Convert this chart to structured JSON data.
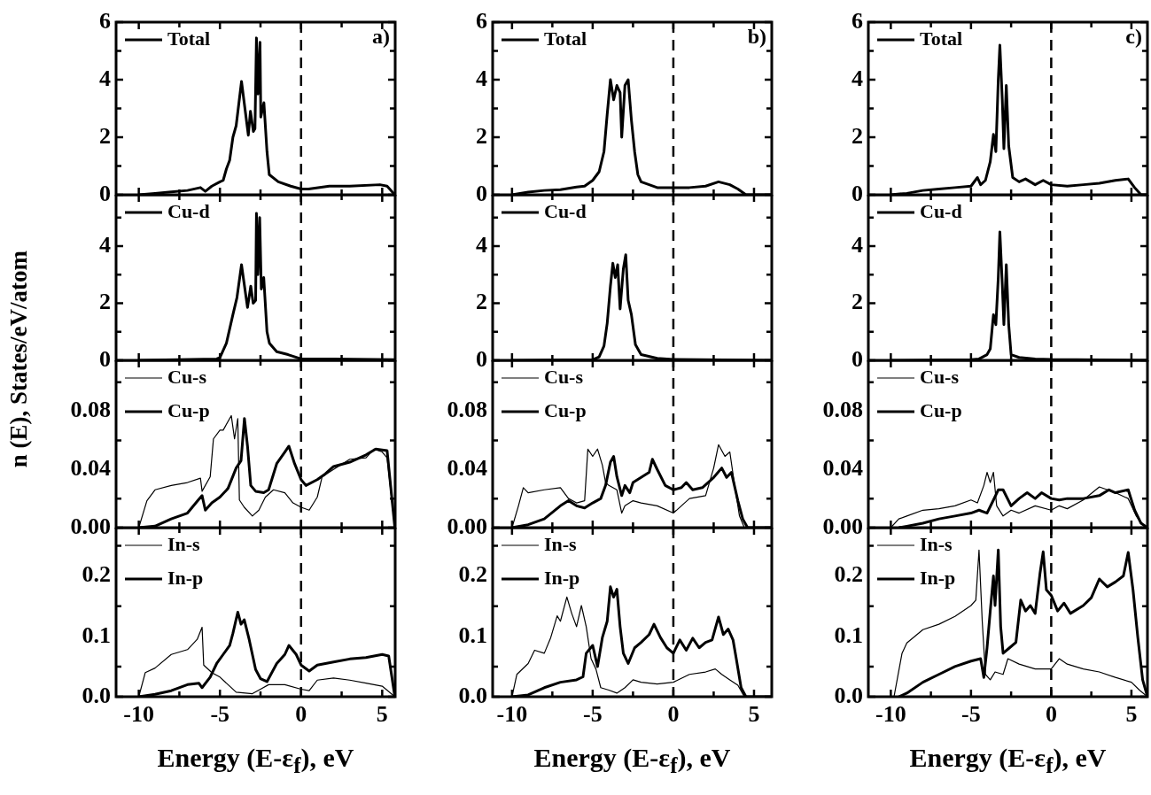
{
  "chart_data": [
    {
      "type": "line",
      "annotations": [
        "a)"
      ],
      "legend": "top left",
      "tick_labels": "y",
      "xlim": [
        -11.4,
        5.8
      ],
      "xticks": [
        -10,
        {
          "value": -7.5,
          "label": null
        },
        -5,
        {
          "value": -2.5,
          "label": null
        },
        0,
        {
          "value": 2.5,
          "label": null
        },
        5
      ],
      "ylim": [
        0,
        6
      ],
      "yticks": [
        0,
        {
          "value": 1,
          "label": null
        },
        2,
        {
          "value": 3,
          "label": null
        },
        4,
        {
          "value": 5,
          "label": null
        },
        6
      ],
      "ref_lines": [
        {
          "axis": "x",
          "value": 0,
          "line_style": "dashed"
        }
      ],
      "series": [
        {
          "name": "Total",
          "color": "#000000",
          "x": [
            -10,
            -9,
            -8,
            -7,
            -6.2,
            -5.9,
            -5.5,
            -5,
            -4.8,
            -4.6,
            -4.4,
            -4.2,
            -4,
            -3.67,
            -3.25,
            -3.12,
            -2.94,
            -2.84,
            -2.75,
            -2.66,
            -2.53,
            -2.48,
            -2.29,
            -2.1,
            -1.96,
            -1.4,
            -0.64,
            0,
            0.46,
            1.74,
            3,
            4.86,
            5.3,
            5.78
          ],
          "values": [
            0,
            0.05,
            0.1,
            0.15,
            0.25,
            0.12,
            0.3,
            0.45,
            0.5,
            0.9,
            1.2,
            2,
            2.4,
            3.94,
            2.07,
            2.9,
            2.2,
            2.3,
            5.45,
            3.5,
            5.3,
            2.7,
            3.2,
            1.5,
            0.7,
            0.45,
            0.3,
            0.2,
            0.2,
            0.3,
            0.3,
            0.35,
            0.3,
            0
          ]
        }
      ]
    },
    {
      "type": "line",
      "ylabel": "n (E), States/eV/atom",
      "legend": "top left",
      "tick_labels": "y",
      "xlim": [
        -11.4,
        5.8
      ],
      "xticks": [
        -10,
        {
          "value": -7.5,
          "label": null
        },
        -5,
        {
          "value": -2.5,
          "label": null
        },
        0,
        {
          "value": 2.5,
          "label": null
        },
        5
      ],
      "ylim": [
        0,
        5.8
      ],
      "yticks": [
        0,
        {
          "value": 1,
          "label": null
        },
        2,
        {
          "value": 3,
          "label": null
        },
        4,
        {
          "value": 5,
          "label": null
        }
      ],
      "ref_lines": [
        {
          "axis": "x",
          "value": 0,
          "line_style": "dashed"
        }
      ],
      "series": [
        {
          "name": "Cu-d",
          "color": "#000000",
          "x": [
            -10,
            -5.2,
            -5,
            -4.6,
            -4.2,
            -3.95,
            -3.67,
            -3.3,
            -3.1,
            -2.95,
            -2.8,
            -2.75,
            -2.66,
            -2.55,
            -2.45,
            -2.3,
            -2.1,
            -1.95,
            -1.5,
            -0.8,
            0,
            2,
            5.78
          ],
          "values": [
            0,
            0.05,
            0.1,
            0.6,
            1.6,
            2.2,
            3.35,
            1.85,
            2.6,
            2,
            2.1,
            5.15,
            3,
            5,
            2.5,
            2.9,
            1,
            0.6,
            0.3,
            0.2,
            0.05,
            0.05,
            0.02
          ]
        }
      ]
    },
    {
      "type": "line",
      "legend": "top left",
      "tick_labels": "y",
      "xlim": [
        -11.4,
        5.8
      ],
      "xticks": [
        -10,
        {
          "value": -7.5,
          "label": null
        },
        -5,
        {
          "value": -2.5,
          "label": null
        },
        0,
        {
          "value": 2.5,
          "label": null
        },
        5
      ],
      "ylim": [
        0,
        0.115
      ],
      "yticks": [
        {
          "value": 0,
          "label": "0.00"
        },
        {
          "value": 0.02,
          "label": null
        },
        0.04,
        {
          "value": 0.06,
          "label": null
        },
        0.08,
        {
          "value": 0.1,
          "label": null
        }
      ],
      "ref_lines": [
        {
          "axis": "x",
          "value": 0,
          "line_style": "dashed"
        }
      ],
      "series": [
        {
          "name": "Cu-s",
          "color": "#000000",
          "x": [
            -10,
            -9.5,
            -9,
            -8,
            -7,
            -6.2,
            -6.1,
            -5.6,
            -5.4,
            -5,
            -4.8,
            -4.3,
            -4.1,
            -3.9,
            -3.8,
            -3.5,
            -3,
            -2.6,
            -2.2,
            -1.7,
            -1,
            -0.5,
            0,
            0.5,
            1,
            1.3,
            2,
            3,
            4,
            4.5,
            5,
            5.3,
            5.78
          ],
          "values": [
            0,
            0.0185,
            0.026,
            0.029,
            0.031,
            0.034,
            0.025,
            0.035,
            0.061,
            0.067,
            0.067,
            0.077,
            0.061,
            0.075,
            0.019,
            0.014,
            0.008,
            0.012,
            0.021,
            0.026,
            0.024,
            0.017,
            0.014,
            0.012,
            0.021,
            0.035,
            0.04,
            0.047,
            0.048,
            0.054,
            0.052,
            0.048,
            0
          ]
        },
        {
          "name": "Cu-p",
          "color": "#000000",
          "x": [
            -10,
            -9,
            -8,
            -7,
            -6.3,
            -6.1,
            -5.9,
            -5.5,
            -5,
            -4.5,
            -4,
            -3.7,
            -3.49,
            -3.3,
            -3.1,
            -2.8,
            -2.3,
            -2,
            -1.5,
            -1,
            -0.75,
            -0.4,
            0,
            0.3,
            1,
            1.5,
            2,
            3,
            4,
            4.6,
            5.3,
            5.78
          ],
          "values": [
            0,
            0.001,
            0.006,
            0.01,
            0.0195,
            0.022,
            0.012,
            0.017,
            0.021,
            0.027,
            0.041,
            0.046,
            0.075,
            0.056,
            0.029,
            0.025,
            0.024,
            0.026,
            0.044,
            0.052,
            0.056,
            0.044,
            0.033,
            0.029,
            0.033,
            0.037,
            0.042,
            0.045,
            0.05,
            0.054,
            0.053,
            0
          ]
        }
      ]
    },
    {
      "type": "line",
      "xlabel": "Energy (E-ε$_{f}$), eV",
      "legend": "top left",
      "xlim": [
        -11.4,
        5.8
      ],
      "xticks": [
        -10,
        {
          "value": -7.5,
          "label": null
        },
        -5,
        {
          "value": -2.5,
          "label": null
        },
        0,
        {
          "value": 2.5,
          "label": null
        },
        5
      ],
      "ylim": [
        0,
        0.28
      ],
      "yticks": [
        {
          "value": 0,
          "label": "0.0"
        },
        {
          "value": 0.05,
          "label": null
        },
        0.1,
        {
          "value": 0.15,
          "label": null
        },
        0.2,
        {
          "value": 0.25,
          "label": null
        }
      ],
      "ref_lines": [
        {
          "axis": "x",
          "value": 0,
          "line_style": "dashed"
        }
      ],
      "series": [
        {
          "name": "In-s",
          "color": "#000000",
          "x": [
            -10,
            -9.6,
            -9,
            -8,
            -7,
            -6.4,
            -6.1,
            -6,
            -5.5,
            -5,
            -4.5,
            -4,
            -3,
            -2.5,
            -2,
            -1,
            0,
            0.5,
            1,
            2,
            3,
            4,
            5,
            5.78
          ],
          "values": [
            0,
            0.04,
            0.0475,
            0.07,
            0.078,
            0.095,
            0.115,
            0.0525,
            0.04,
            0.0325,
            0.02,
            0.0075,
            0.005,
            0.0125,
            0.02,
            0.02,
            0.0125,
            0.01,
            0.0275,
            0.031,
            0.0275,
            0.0225,
            0.0175,
            0
          ]
        },
        {
          "name": "In-p",
          "color": "#000000",
          "x": [
            -10,
            -9,
            -8,
            -7,
            -6.3,
            -6.1,
            -5.6,
            -5.2,
            -4.8,
            -4.4,
            -4.2,
            -3.9,
            -3.7,
            -3.5,
            -3.2,
            -2.8,
            -2.5,
            -2.1,
            -1.5,
            -1,
            -0.75,
            -0.3,
            0,
            0.5,
            1,
            2,
            3,
            4,
            5,
            5.4,
            5.78
          ],
          "values": [
            0,
            0.004,
            0.01,
            0.02,
            0.0225,
            0.015,
            0.0325,
            0.055,
            0.07,
            0.085,
            0.105,
            0.14,
            0.12,
            0.1275,
            0.095,
            0.045,
            0.03,
            0.025,
            0.055,
            0.07,
            0.085,
            0.07,
            0.0525,
            0.0425,
            0.0525,
            0.0575,
            0.0625,
            0.065,
            0.07,
            0.0675,
            0
          ]
        }
      ]
    },
    {
      "type": "line",
      "annotations": [
        "b)"
      ],
      "legend": "top left",
      "tick_labels": "y",
      "xlim": [
        -11.2,
        6.1
      ],
      "xticks": [
        -10,
        {
          "value": -7.5,
          "label": null
        },
        -5,
        {
          "value": -2.5,
          "label": null
        },
        0,
        {
          "value": 2.5,
          "label": null
        },
        5
      ],
      "ylim": [
        0,
        6
      ],
      "yticks": [
        0,
        {
          "value": 1,
          "label": null
        },
        2,
        {
          "value": 3,
          "label": null
        },
        4,
        {
          "value": 5,
          "label": null
        },
        6
      ],
      "ref_lines": [
        {
          "axis": "x",
          "value": 0,
          "line_style": "dashed"
        }
      ],
      "series": [
        {
          "name": "Total",
          "color": "#000000",
          "x": [
            -10,
            -9,
            -8,
            -7,
            -6,
            -5.5,
            -5,
            -4.6,
            -4.3,
            -4.1,
            -3.9,
            -3.7,
            -3.5,
            -3.3,
            -3.2,
            -3,
            -2.8,
            -2.6,
            -2.4,
            -2.2,
            -2,
            -1,
            0,
            1,
            2,
            2.8,
            3.5,
            4,
            4.5,
            6.1
          ],
          "values": [
            0,
            0.09,
            0.15,
            0.18,
            0.27,
            0.3,
            0.5,
            0.8,
            1.5,
            2.8,
            4,
            3.3,
            3.8,
            3.55,
            2,
            3.8,
            4,
            2.6,
            1.5,
            0.7,
            0.45,
            0.25,
            0.25,
            0.25,
            0.3,
            0.45,
            0.35,
            0.2,
            0,
            0
          ]
        }
      ]
    },
    {
      "type": "line",
      "legend": "top left",
      "tick_labels": "y",
      "xlim": [
        -11.2,
        6.1
      ],
      "xticks": [
        -10,
        {
          "value": -7.5,
          "label": null
        },
        -5,
        {
          "value": -2.5,
          "label": null
        },
        0,
        {
          "value": 2.5,
          "label": null
        },
        5
      ],
      "ylim": [
        0,
        5.8
      ],
      "yticks": [
        0,
        {
          "value": 1,
          "label": null
        },
        2,
        {
          "value": 3,
          "label": null
        },
        4,
        {
          "value": 5,
          "label": null
        }
      ],
      "ref_lines": [
        {
          "axis": "x",
          "value": 0,
          "line_style": "dashed"
        }
      ],
      "series": [
        {
          "name": "Cu-d",
          "color": "#000000",
          "x": [
            -10,
            -5,
            -4.6,
            -4.3,
            -4.1,
            -3.9,
            -3.75,
            -3.6,
            -3.45,
            -3.3,
            -3.1,
            -2.95,
            -2.8,
            -2.6,
            -2.35,
            -2,
            -1,
            0,
            6.1
          ],
          "values": [
            0,
            0.02,
            0.12,
            0.5,
            1.3,
            2.6,
            3.4,
            2.9,
            3.35,
            1.8,
            3.2,
            3.7,
            2.1,
            1.6,
            0.55,
            0.2,
            0.07,
            0.03,
            0
          ]
        }
      ]
    },
    {
      "type": "line",
      "legend": "top left",
      "tick_labels": "y",
      "xlim": [
        -11.2,
        6.1
      ],
      "xticks": [
        -10,
        {
          "value": -7.5,
          "label": null
        },
        -5,
        {
          "value": -2.5,
          "label": null
        },
        0,
        {
          "value": 2.5,
          "label": null
        },
        5
      ],
      "ylim": [
        0,
        0.115
      ],
      "yticks": [
        {
          "value": 0,
          "label": "0.00"
        },
        {
          "value": 0.02,
          "label": null
        },
        0.04,
        {
          "value": 0.06,
          "label": null
        },
        0.08,
        {
          "value": 0.1,
          "label": null
        }
      ],
      "ref_lines": [
        {
          "axis": "x",
          "value": 0,
          "line_style": "dashed"
        }
      ],
      "series": [
        {
          "name": "Cu-s",
          "color": "#000000",
          "x": [
            -10,
            -9.6,
            -9.3,
            -9,
            -8,
            -7,
            -6.5,
            -6,
            -5.5,
            -5.3,
            -5,
            -4.7,
            -4.4,
            -4.2,
            -4,
            -3.5,
            -3.2,
            -3,
            -2.5,
            -2,
            -1,
            0,
            0.5,
            1,
            2,
            2.5,
            2.8,
            3.2,
            3.5,
            3.8,
            4.1,
            4.4,
            6.1
          ],
          "values": [
            0,
            0.015,
            0.0275,
            0.024,
            0.026,
            0.0275,
            0.02,
            0.017,
            0.0185,
            0.054,
            0.049,
            0.054,
            0.043,
            0.031,
            0.029,
            0.026,
            0.01,
            0.015,
            0.0185,
            0.017,
            0.015,
            0.01,
            0.015,
            0.02,
            0.022,
            0.041,
            0.057,
            0.049,
            0.052,
            0.029,
            0.008,
            0,
            0
          ]
        },
        {
          "name": "Cu-p",
          "color": "#000000",
          "x": [
            -10,
            -9,
            -8,
            -7,
            -6.5,
            -6,
            -5.5,
            -5,
            -4.5,
            -4.2,
            -3.9,
            -3.7,
            -3.5,
            -3.2,
            -3,
            -2.7,
            -2.5,
            -2,
            -1.5,
            -1.3,
            -1,
            -0.5,
            0,
            0.5,
            0.8,
            1.2,
            1.8,
            2.5,
            3,
            3.3,
            3.6,
            4,
            4.3,
            4.6,
            6.1
          ],
          "values": [
            0,
            0.002,
            0.006,
            0.015,
            0.0185,
            0.015,
            0.0135,
            0.017,
            0.02,
            0.029,
            0.045,
            0.049,
            0.035,
            0.022,
            0.029,
            0.024,
            0.031,
            0.0345,
            0.038,
            0.047,
            0.04,
            0.029,
            0.026,
            0.0275,
            0.031,
            0.026,
            0.0275,
            0.0345,
            0.041,
            0.0345,
            0.038,
            0.0185,
            0.006,
            0,
            0
          ]
        }
      ]
    },
    {
      "type": "line",
      "xlabel": "Energy (E-ε$_{f}$), eV",
      "legend": "top left",
      "xlim": [
        -11.2,
        6.1
      ],
      "xticks": [
        -10,
        {
          "value": -7.5,
          "label": null
        },
        -5,
        {
          "value": -2.5,
          "label": null
        },
        0,
        {
          "value": 2.5,
          "label": null
        },
        5
      ],
      "ylim": [
        0,
        0.28
      ],
      "yticks": [
        {
          "value": 0,
          "label": "0.0"
        },
        {
          "value": 0.05,
          "label": null
        },
        0.1,
        {
          "value": 0.15,
          "label": null
        },
        0.2,
        {
          "value": 0.25,
          "label": null
        }
      ],
      "ref_lines": [
        {
          "axis": "x",
          "value": 0,
          "line_style": "dashed"
        }
      ],
      "series": [
        {
          "name": "In-s",
          "color": "#000000",
          "x": [
            -10,
            -9.7,
            -9,
            -8.6,
            -8,
            -7.6,
            -7.2,
            -7,
            -6.6,
            -6.3,
            -6,
            -5.7,
            -5.4,
            -5.1,
            -4.8,
            -4.5,
            -4,
            -3.5,
            -3,
            -2.5,
            -2,
            -1,
            0,
            1,
            2,
            2.6,
            3,
            3.5,
            4,
            4.4,
            6.1
          ],
          "values": [
            0,
            0.037,
            0.055,
            0.077,
            0.072,
            0.098,
            0.134,
            0.125,
            0.165,
            0.138,
            0.116,
            0.151,
            0.116,
            0.063,
            0.046,
            0.015,
            0.011,
            0.006,
            0.015,
            0.028,
            0.024,
            0.021,
            0.024,
            0.037,
            0.041,
            0.046,
            0.037,
            0.028,
            0.019,
            0,
            0
          ]
        },
        {
          "name": "In-p",
          "color": "#000000",
          "x": [
            -10,
            -9,
            -8,
            -7,
            -6,
            -5.6,
            -5.4,
            -5,
            -4.7,
            -4.4,
            -4.1,
            -3.9,
            -3.7,
            -3.5,
            -3.3,
            -3.1,
            -2.8,
            -2.4,
            -2,
            -1.5,
            -1.2,
            -0.8,
            -0.4,
            0,
            0.4,
            0.8,
            1.2,
            1.6,
            2,
            2.4,
            2.8,
            3.1,
            3.4,
            3.7,
            3.9,
            4.2,
            4.5,
            6.1
          ],
          "values": [
            0,
            0.003,
            0.015,
            0.024,
            0.028,
            0.033,
            0.072,
            0.085,
            0.05,
            0.098,
            0.125,
            0.182,
            0.165,
            0.178,
            0.116,
            0.072,
            0.055,
            0.081,
            0.09,
            0.103,
            0.12,
            0.098,
            0.081,
            0.072,
            0.094,
            0.077,
            0.097,
            0.081,
            0.09,
            0.094,
            0.132,
            0.103,
            0.112,
            0.094,
            0.063,
            0.015,
            0,
            0
          ]
        }
      ]
    },
    {
      "type": "line",
      "annotations": [
        "c)"
      ],
      "legend": "top left",
      "tick_labels": "y",
      "xlim": [
        -11.4,
        6
      ],
      "xticks": [
        -10,
        {
          "value": -7.5,
          "label": null
        },
        -5,
        {
          "value": -2.5,
          "label": null
        },
        0,
        {
          "value": 2.5,
          "label": null
        },
        5
      ],
      "ylim": [
        0,
        6
      ],
      "yticks": [
        0,
        {
          "value": 1,
          "label": null
        },
        2,
        {
          "value": 3,
          "label": null
        },
        4,
        {
          "value": 5,
          "label": null
        },
        6
      ],
      "ref_lines": [
        {
          "axis": "x",
          "value": 0,
          "line_style": "dashed"
        }
      ],
      "series": [
        {
          "name": "Total",
          "color": "#000000",
          "x": [
            -10,
            -9,
            -8,
            -7,
            -6,
            -5,
            -4.6,
            -4.4,
            -4.1,
            -3.8,
            -3.6,
            -3.45,
            -3.3,
            -3.2,
            -3.05,
            -2.95,
            -2.8,
            -2.65,
            -2.4,
            -2,
            -1.6,
            -1,
            -0.5,
            0,
            1,
            2,
            3,
            4,
            4.8,
            5.2,
            5.6,
            6
          ],
          "values": [
            0,
            0.05,
            0.15,
            0.2,
            0.25,
            0.3,
            0.6,
            0.35,
            0.5,
            1.15,
            2.1,
            1.5,
            4,
            5.2,
            3.3,
            1.6,
            3.8,
            1.7,
            0.6,
            0.45,
            0.55,
            0.35,
            0.5,
            0.35,
            0.3,
            0.35,
            0.4,
            0.5,
            0.55,
            0.25,
            0,
            0
          ]
        }
      ]
    },
    {
      "type": "line",
      "legend": "top left",
      "tick_labels": "y",
      "xlim": [
        -11.4,
        6
      ],
      "xticks": [
        -10,
        {
          "value": -7.5,
          "label": null
        },
        -5,
        {
          "value": -2.5,
          "label": null
        },
        0,
        {
          "value": 2.5,
          "label": null
        },
        5
      ],
      "ylim": [
        0,
        5.8
      ],
      "yticks": [
        0,
        {
          "value": 1,
          "label": null
        },
        2,
        {
          "value": 3,
          "label": null
        },
        4,
        {
          "value": 5,
          "label": null
        }
      ],
      "ref_lines": [
        {
          "axis": "x",
          "value": 0,
          "line_style": "dashed"
        }
      ],
      "series": [
        {
          "name": "Cu-d",
          "color": "#000000",
          "x": [
            -10,
            -5,
            -4.5,
            -4,
            -3.8,
            -3.6,
            -3.45,
            -3.3,
            -3.2,
            -3.05,
            -2.95,
            -2.8,
            -2.65,
            -2.5,
            -2,
            -1,
            0,
            6
          ],
          "values": [
            0,
            0.02,
            0.05,
            0.2,
            0.4,
            1.6,
            1.25,
            2.9,
            4.5,
            2.65,
            1.25,
            3.35,
            1.25,
            0.2,
            0.1,
            0.05,
            0.03,
            0
          ]
        }
      ]
    },
    {
      "type": "line",
      "legend": "top left",
      "tick_labels": "y",
      "xlim": [
        -11.4,
        6
      ],
      "xticks": [
        -10,
        {
          "value": -7.5,
          "label": null
        },
        -5,
        {
          "value": -2.5,
          "label": null
        },
        0,
        {
          "value": 2.5,
          "label": null
        },
        5
      ],
      "ylim": [
        0,
        0.115
      ],
      "yticks": [
        {
          "value": 0,
          "label": "0.00"
        },
        {
          "value": 0.02,
          "label": null
        },
        0.04,
        {
          "value": 0.06,
          "label": null
        },
        0.08,
        {
          "value": 0.1,
          "label": null
        }
      ],
      "ref_lines": [
        {
          "axis": "x",
          "value": 0,
          "line_style": "dashed"
        }
      ],
      "series": [
        {
          "name": "Cu-s",
          "color": "#000000",
          "x": [
            -10,
            -9.5,
            -9,
            -8,
            -7,
            -6,
            -5,
            -4.6,
            -4.2,
            -4,
            -3.8,
            -3.6,
            -3.4,
            -3,
            -2.5,
            -2,
            -1,
            0,
            0.5,
            1,
            2,
            3,
            4,
            4.8,
            5.3,
            5.8,
            6
          ],
          "values": [
            0,
            0.006,
            0.008,
            0.012,
            0.013,
            0.015,
            0.019,
            0.017,
            0.029,
            0.038,
            0.031,
            0.038,
            0.015,
            0.008,
            0.012,
            0.01,
            0.015,
            0.012,
            0.015,
            0.013,
            0.019,
            0.028,
            0.024,
            0.02,
            0.008,
            0.001,
            0
          ]
        },
        {
          "name": "Cu-p",
          "color": "#000000",
          "x": [
            -9.5,
            -9,
            -8,
            -7,
            -6,
            -5,
            -4.5,
            -4,
            -3.6,
            -3.3,
            -3,
            -2.5,
            -2,
            -1.5,
            -1,
            -0.6,
            0,
            0.5,
            1,
            2,
            3,
            3.6,
            4,
            4.8,
            5.2,
            5.6,
            6
          ],
          "values": [
            0,
            0.001,
            0.003,
            0.006,
            0.008,
            0.01,
            0.012,
            0.01,
            0.019,
            0.026,
            0.026,
            0.015,
            0.02,
            0.024,
            0.02,
            0.024,
            0.02,
            0.019,
            0.02,
            0.02,
            0.022,
            0.026,
            0.024,
            0.026,
            0.012,
            0.003,
            0
          ]
        }
      ]
    },
    {
      "type": "line",
      "xlabel": "Energy (E-ε$_{f}$), eV",
      "legend": "top left",
      "xlim": [
        -11.4,
        6
      ],
      "xticks": [
        -10,
        {
          "value": -7.5,
          "label": null
        },
        -5,
        {
          "value": -2.5,
          "label": null
        },
        0,
        {
          "value": 2.5,
          "label": null
        },
        5
      ],
      "ylim": [
        0,
        0.28
      ],
      "yticks": [
        {
          "value": 0,
          "label": "0.0"
        },
        {
          "value": 0.05,
          "label": null
        },
        0.1,
        {
          "value": 0.15,
          "label": null
        },
        0.2,
        {
          "value": 0.25,
          "label": null
        }
      ],
      "ref_lines": [
        {
          "axis": "x",
          "value": 0,
          "line_style": "dashed"
        }
      ],
      "series": [
        {
          "name": "In-s",
          "color": "#000000",
          "x": [
            -9.8,
            -9.3,
            -9,
            -8,
            -7,
            -6,
            -5,
            -4.7,
            -4.5,
            -4.3,
            -4.1,
            -3.8,
            -3.5,
            -3,
            -2.7,
            -2,
            -1,
            0,
            0.5,
            1,
            2,
            3,
            4,
            5,
            5.5,
            6
          ],
          "values": [
            0,
            0.072,
            0.089,
            0.111,
            0.12,
            0.133,
            0.151,
            0.16,
            0.243,
            0.125,
            0.037,
            0.028,
            0.041,
            0.037,
            0.063,
            0.054,
            0.046,
            0.046,
            0.063,
            0.054,
            0.046,
            0.041,
            0.032,
            0.024,
            0.011,
            0
          ]
        },
        {
          "name": "In-p",
          "color": "#000000",
          "x": [
            -9.5,
            -9,
            -8,
            -7,
            -6,
            -5,
            -4.4,
            -4.2,
            -4,
            -3.8,
            -3.6,
            -3.5,
            -3.3,
            -3.15,
            -3,
            -2.6,
            -2.2,
            -1.9,
            -1.6,
            -1.3,
            -1,
            -0.7,
            -0.5,
            -0.3,
            0,
            0.4,
            0.8,
            1.2,
            2,
            2.5,
            3,
            3.5,
            4,
            4.5,
            4.8,
            5.1,
            5.4,
            5.7,
            6
          ],
          "values": [
            0,
            0.006,
            0.024,
            0.037,
            0.05,
            0.059,
            0.063,
            0.032,
            0.081,
            0.142,
            0.2,
            0.151,
            0.243,
            0.116,
            0.072,
            0.081,
            0.09,
            0.16,
            0.142,
            0.151,
            0.138,
            0.204,
            0.24,
            0.177,
            0.168,
            0.142,
            0.155,
            0.138,
            0.151,
            0.164,
            0.195,
            0.182,
            0.19,
            0.2,
            0.239,
            0.177,
            0.098,
            0.028,
            0
          ]
        }
      ]
    }
  ]
}
